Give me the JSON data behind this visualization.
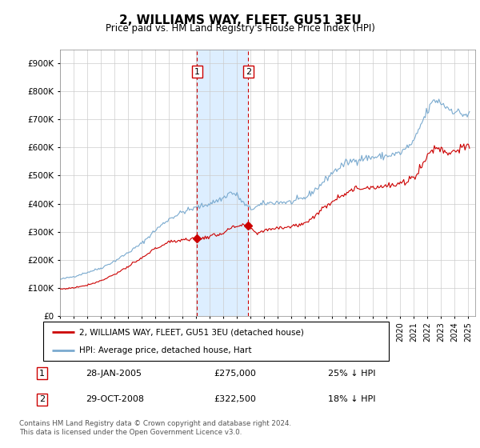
{
  "title": "2, WILLIAMS WAY, FLEET, GU51 3EU",
  "subtitle": "Price paid vs. HM Land Registry's House Price Index (HPI)",
  "ylabel_ticks": [
    "£0",
    "£100K",
    "£200K",
    "£300K",
    "£400K",
    "£500K",
    "£600K",
    "£700K",
    "£800K",
    "£900K"
  ],
  "ylim": [
    0,
    950000
  ],
  "xlim_start": 1995.0,
  "xlim_end": 2025.5,
  "sale1": {
    "date_num": 2005.07,
    "price": 275000,
    "label": "1"
  },
  "sale2": {
    "date_num": 2008.83,
    "price": 322500,
    "label": "2"
  },
  "legend_line1": "2, WILLIAMS WAY, FLEET, GU51 3EU (detached house)",
  "legend_line2": "HPI: Average price, detached house, Hart",
  "table_row1": [
    "1",
    "28-JAN-2005",
    "£275,000",
    "25% ↓ HPI"
  ],
  "table_row2": [
    "2",
    "29-OCT-2008",
    "£322,500",
    "18% ↓ HPI"
  ],
  "footer": "Contains HM Land Registry data © Crown copyright and database right 2024.\nThis data is licensed under the Open Government Licence v3.0.",
  "hpi_color": "#7aaacf",
  "price_color": "#cc0000",
  "shade_color": "#ddeeff",
  "vline_color": "#cc0000"
}
